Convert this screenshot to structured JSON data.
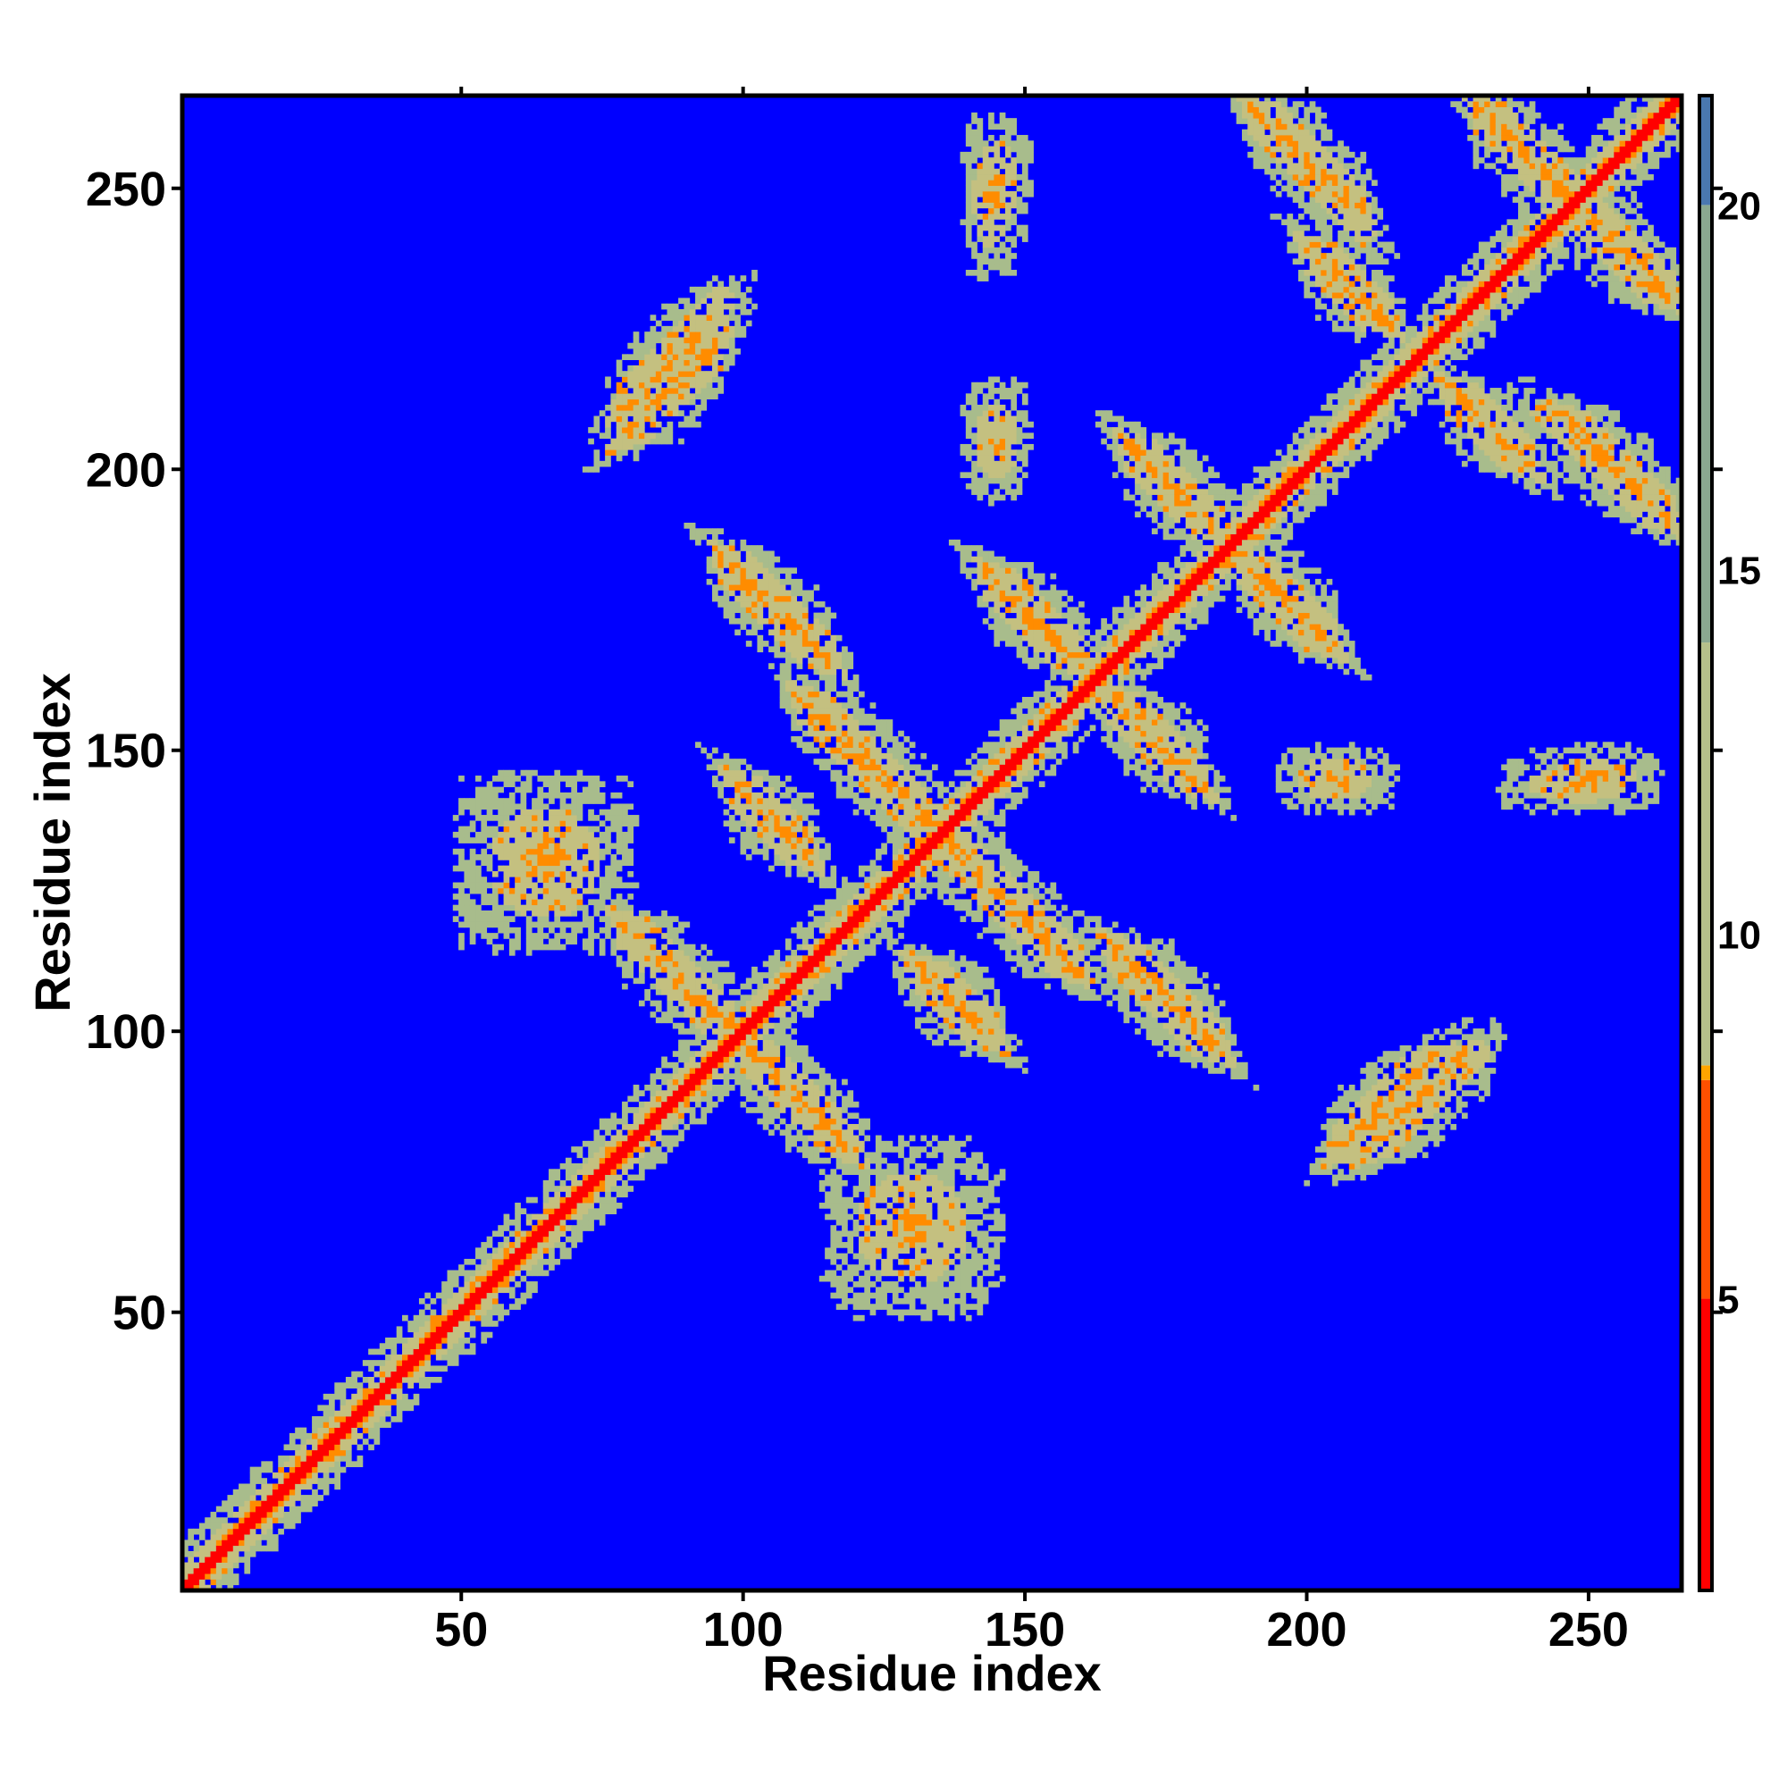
{
  "chart_data": {
    "type": "heatmap",
    "title": "",
    "xlabel": "Residue index",
    "ylabel": "Residue index",
    "n_residues": 266,
    "xlim": [
      1,
      266
    ],
    "ylim": [
      1,
      266
    ],
    "x_ticks": [
      50,
      100,
      150,
      200,
      250
    ],
    "y_ticks": [
      50,
      100,
      150,
      200,
      250
    ],
    "grid": false,
    "colorbar": {
      "ticks": [
        5,
        10,
        15,
        20
      ],
      "range": [
        1,
        21.5
      ],
      "stops": [
        {
          "value": 1,
          "color": "#ff0000"
        },
        {
          "value": 5,
          "color": "#ff5000"
        },
        {
          "value": 8,
          "color": "#ffa500"
        },
        {
          "value": 8.2,
          "color": "#b6c08a"
        },
        {
          "value": 14,
          "color": "#8aa890"
        },
        {
          "value": 20,
          "color": "#4a78b0"
        },
        {
          "value": 21.5,
          "color": "#0000ff"
        }
      ]
    },
    "colors": {
      "background": "#0000ff",
      "contact_far": "#a8bc8c",
      "contact_mid": "#c4c080",
      "contact_near": "#ff8c00",
      "diagonal": "#ff0000"
    },
    "contact_features": [
      {
        "type": "diagonal",
        "from": 1,
        "to": 266
      },
      {
        "type": "antiparallel",
        "i_range": [
          78,
          98
        ],
        "j_range": [
          100,
          120
        ],
        "note": "hairpin"
      },
      {
        "type": "antiparallel",
        "i_range": [
          96,
          116
        ],
        "j_range": [
          165,
          185
        ]
      },
      {
        "type": "antiparallel",
        "i_range": [
          98,
          112
        ],
        "j_range": [
          130,
          145
        ]
      },
      {
        "type": "antiparallel",
        "i_range": [
          110,
          135
        ],
        "j_range": [
          135,
          160
        ]
      },
      {
        "type": "antiparallel",
        "i_range": [
          143,
          160
        ],
        "j_range": [
          165,
          182
        ]
      },
      {
        "type": "antiparallel",
        "i_range": [
          168,
          185
        ],
        "j_range": [
          188,
          205
        ]
      },
      {
        "type": "antiparallel",
        "i_range": [
          200,
          215
        ],
        "j_range": [
          225,
          240
        ]
      },
      {
        "type": "antiparallel",
        "i_range": [
          190,
          210
        ],
        "j_range": [
          240,
          265
        ]
      },
      {
        "type": "antiparallel",
        "i_range": [
          230,
          250
        ],
        "j_range": [
          245,
          265
        ]
      },
      {
        "type": "parallel",
        "i_range": [
          78,
          96
        ],
        "j_range": [
          210,
          232
        ]
      },
      {
        "type": "parallel",
        "i_range": [
          205,
          225
        ],
        "j_range": [
          78,
          96
        ]
      },
      {
        "type": "blob",
        "i_range": [
          140,
          150
        ],
        "j_range": [
          240,
          262
        ]
      },
      {
        "type": "blob",
        "i_range": [
          195,
          215
        ],
        "j_range": [
          140,
          150
        ]
      },
      {
        "type": "blob",
        "i_range": [
          235,
          262
        ],
        "j_range": [
          140,
          148
        ]
      },
      {
        "type": "blob",
        "i_range": [
          115,
          145
        ],
        "j_range": [
          50,
          80
        ]
      }
    ]
  }
}
